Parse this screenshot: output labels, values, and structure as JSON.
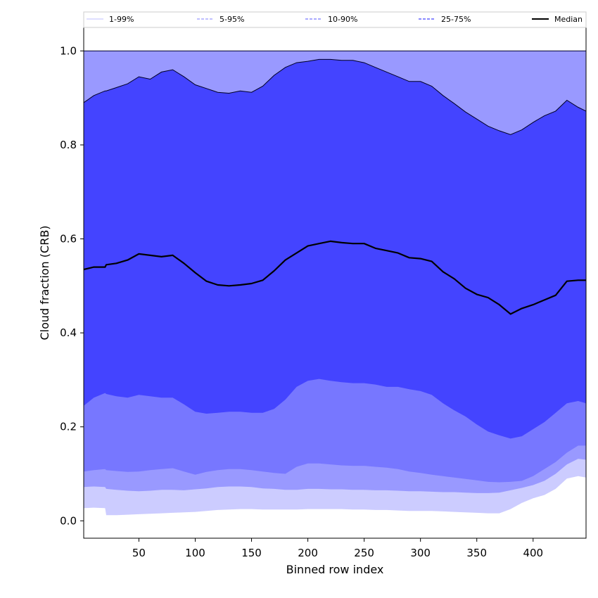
{
  "chart_data": {
    "type": "area",
    "xlabel": "Binned row index",
    "ylabel": "Cloud fraction (CRB)",
    "xlim": [
      1,
      447
    ],
    "ylim": [
      -0.037,
      1.05
    ],
    "xticks": [
      50,
      100,
      150,
      200,
      250,
      300,
      350,
      400
    ],
    "yticks": [
      0.0,
      0.2,
      0.4,
      0.6,
      0.8,
      1.0
    ],
    "ytick_labels": [
      "0.0",
      "0.2",
      "0.4",
      "0.6",
      "0.8",
      "1.0"
    ],
    "grid": false,
    "legend": {
      "placement": "top",
      "entries": [
        {
          "key": "p1_99",
          "label": "1-99%",
          "color": "#ccccff",
          "style": "solid"
        },
        {
          "key": "p5_95",
          "label": "5-95%",
          "color": "#9999ff",
          "style": "dashed"
        },
        {
          "key": "p10_90",
          "label": "10-90%",
          "color": "#7777ff",
          "style": "dashed"
        },
        {
          "key": "p25_75",
          "label": "25-75%",
          "color": "#4444ff",
          "style": "dashed"
        },
        {
          "key": "median",
          "label": "Median",
          "color": "#000000",
          "style": "solid"
        }
      ]
    },
    "x": [
      1,
      10,
      20,
      21,
      30,
      40,
      50,
      60,
      70,
      80,
      90,
      100,
      110,
      120,
      130,
      140,
      150,
      160,
      170,
      180,
      190,
      200,
      210,
      220,
      230,
      240,
      250,
      260,
      270,
      280,
      290,
      300,
      310,
      320,
      330,
      340,
      350,
      360,
      370,
      380,
      390,
      400,
      410,
      420,
      430,
      440,
      447
    ],
    "bands": [
      {
        "name": "1-99%",
        "color": "#ccccff",
        "lower": [
          0.027,
          0.028,
          0.027,
          0.012,
          0.012,
          0.013,
          0.014,
          0.015,
          0.016,
          0.017,
          0.018,
          0.019,
          0.021,
          0.023,
          0.024,
          0.025,
          0.025,
          0.024,
          0.024,
          0.024,
          0.024,
          0.025,
          0.025,
          0.025,
          0.025,
          0.024,
          0.024,
          0.023,
          0.023,
          0.022,
          0.021,
          0.021,
          0.021,
          0.02,
          0.019,
          0.018,
          0.017,
          0.016,
          0.016,
          0.025,
          0.038,
          0.048,
          0.055,
          0.068,
          0.09,
          0.095,
          0.092
        ],
        "upper": [
          1.0,
          1.0,
          1.0,
          1.0,
          1.0,
          1.0,
          1.0,
          1.0,
          1.0,
          1.0,
          1.0,
          1.0,
          1.0,
          1.0,
          1.0,
          1.0,
          1.0,
          1.0,
          1.0,
          1.0,
          1.0,
          1.0,
          1.0,
          1.0,
          1.0,
          1.0,
          1.0,
          1.0,
          1.0,
          1.0,
          1.0,
          1.0,
          1.0,
          1.0,
          1.0,
          1.0,
          1.0,
          1.0,
          1.0,
          1.0,
          1.0,
          1.0,
          1.0,
          1.0,
          1.0,
          1.0,
          1.0
        ]
      },
      {
        "name": "5-95%",
        "color": "#9999ff",
        "lower": [
          0.072,
          0.073,
          0.072,
          0.068,
          0.066,
          0.064,
          0.063,
          0.064,
          0.066,
          0.066,
          0.065,
          0.067,
          0.069,
          0.072,
          0.073,
          0.073,
          0.072,
          0.069,
          0.068,
          0.066,
          0.066,
          0.068,
          0.068,
          0.067,
          0.067,
          0.066,
          0.066,
          0.065,
          0.065,
          0.064,
          0.063,
          0.063,
          0.062,
          0.061,
          0.061,
          0.06,
          0.059,
          0.059,
          0.06,
          0.065,
          0.07,
          0.076,
          0.085,
          0.1,
          0.12,
          0.132,
          0.13
        ]
      },
      {
        "name": "10-90%",
        "color": "#7777ff",
        "lower": [
          0.105,
          0.108,
          0.11,
          0.108,
          0.106,
          0.104,
          0.105,
          0.108,
          0.11,
          0.112,
          0.105,
          0.098,
          0.104,
          0.108,
          0.11,
          0.11,
          0.108,
          0.105,
          0.102,
          0.1,
          0.115,
          0.122,
          0.122,
          0.12,
          0.118,
          0.117,
          0.117,
          0.115,
          0.113,
          0.11,
          0.105,
          0.102,
          0.098,
          0.095,
          0.092,
          0.089,
          0.086,
          0.083,
          0.082,
          0.083,
          0.085,
          0.095,
          0.11,
          0.125,
          0.145,
          0.16,
          0.16
        ],
        "upper": [
          0.89,
          0.905,
          0.915,
          0.915,
          0.922,
          0.93,
          0.945,
          0.94,
          0.955,
          0.96,
          0.945,
          0.928,
          0.92,
          0.912,
          0.91,
          0.915,
          0.912,
          0.925,
          0.948,
          0.965,
          0.975,
          0.978,
          0.982,
          0.982,
          0.98,
          0.98,
          0.975,
          0.965,
          0.955,
          0.945,
          0.935,
          0.935,
          0.925,
          0.905,
          0.888,
          0.87,
          0.855,
          0.84,
          0.83,
          0.822,
          0.832,
          0.848,
          0.862,
          0.872,
          0.895,
          0.88,
          0.872
        ]
      },
      {
        "name": "25-75%",
        "color": "#4444ff",
        "lower": [
          0.245,
          0.262,
          0.272,
          0.27,
          0.265,
          0.262,
          0.268,
          0.265,
          0.262,
          0.262,
          0.248,
          0.232,
          0.228,
          0.23,
          0.232,
          0.232,
          0.23,
          0.23,
          0.238,
          0.258,
          0.285,
          0.298,
          0.302,
          0.298,
          0.295,
          0.293,
          0.293,
          0.29,
          0.285,
          0.285,
          0.28,
          0.276,
          0.268,
          0.25,
          0.235,
          0.222,
          0.205,
          0.19,
          0.182,
          0.175,
          0.18,
          0.195,
          0.21,
          0.23,
          0.25,
          0.255,
          0.25
        ],
        "upper": [
          0.89,
          0.905,
          0.915,
          0.915,
          0.922,
          0.93,
          0.945,
          0.94,
          0.955,
          0.96,
          0.945,
          0.928,
          0.92,
          0.912,
          0.91,
          0.915,
          0.912,
          0.925,
          0.948,
          0.965,
          0.975,
          0.978,
          0.982,
          0.982,
          0.98,
          0.98,
          0.975,
          0.965,
          0.955,
          0.945,
          0.935,
          0.935,
          0.925,
          0.905,
          0.888,
          0.87,
          0.855,
          0.84,
          0.83,
          0.822,
          0.832,
          0.848,
          0.862,
          0.872,
          0.895,
          0.88,
          0.872
        ]
      }
    ],
    "series": [
      {
        "name": "Median",
        "color": "#000000",
        "values": [
          0.535,
          0.54,
          0.54,
          0.545,
          0.548,
          0.555,
          0.568,
          0.565,
          0.562,
          0.565,
          0.548,
          0.528,
          0.51,
          0.502,
          0.5,
          0.502,
          0.505,
          0.512,
          0.532,
          0.555,
          0.57,
          0.585,
          0.59,
          0.595,
          0.592,
          0.59,
          0.59,
          0.58,
          0.575,
          0.57,
          0.56,
          0.558,
          0.552,
          0.53,
          0.515,
          0.495,
          0.482,
          0.475,
          0.46,
          0.44,
          0.452,
          0.46,
          0.47,
          0.48,
          0.51,
          0.512,
          0.512
        ]
      }
    ]
  }
}
